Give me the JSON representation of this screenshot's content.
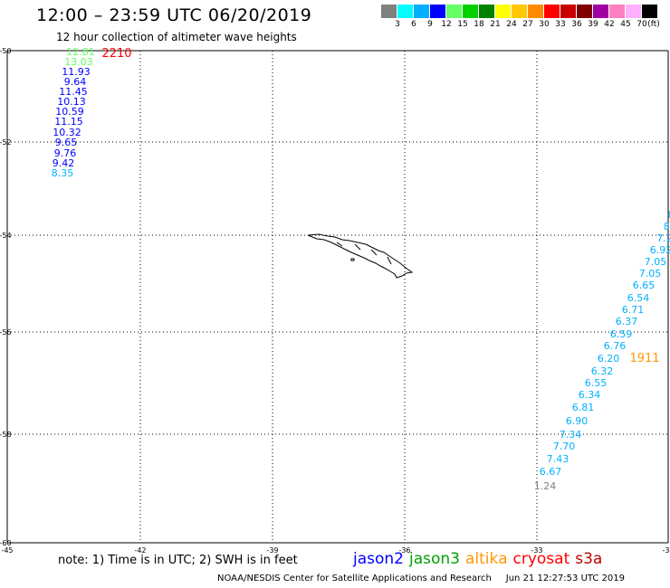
{
  "header": {
    "title": "12:00 – 23:59 UTC 06/20/2019",
    "subtitle": "12 hour collection of altimeter wave heights"
  },
  "legend": {
    "colors": [
      "#808080",
      "#00ffff",
      "#00b0ff",
      "#0000ff",
      "#66ff66",
      "#00d000",
      "#008000",
      "#ffff00",
      "#ffc800",
      "#ff8c00",
      "#ff0000",
      "#c80000",
      "#800000",
      "#a000a0",
      "#ff80c0",
      "#ffb0ff",
      "#000000"
    ],
    "labels": [
      "3",
      "6",
      "9",
      "12",
      "15",
      "18",
      "21",
      "24",
      "27",
      "30",
      "33",
      "36",
      "39",
      "42",
      "45",
      "70"
    ],
    "unit": "(ft)"
  },
  "axes": {
    "lon_labels": [
      "-45",
      "-42",
      "-39",
      "-36",
      "-33",
      "-30"
    ],
    "lat_labels": [
      "-50",
      "-52",
      "-54",
      "-56",
      "-58",
      "-60"
    ]
  },
  "tracks": [
    {
      "satellite": "jason3",
      "values": [
        {
          "v": "12.81",
          "color": "#66ff66"
        },
        {
          "v": "13.03",
          "color": "#66ff66"
        }
      ]
    },
    {
      "satellite": "cryosat",
      "time_label": "2210",
      "time_color": "#ff0000"
    },
    {
      "satellite": "jason2",
      "values": [
        {
          "v": "11.93",
          "color": "#0000ff"
        },
        {
          "v": "9.64",
          "color": "#0000ff"
        },
        {
          "v": "11.45",
          "color": "#0000ff"
        },
        {
          "v": "10.13",
          "color": "#0000ff"
        },
        {
          "v": "10.59",
          "color": "#0000ff"
        },
        {
          "v": "11.15",
          "color": "#0000ff"
        },
        {
          "v": "10.32",
          "color": "#0000ff"
        },
        {
          "v": "9.65",
          "color": "#0000ff"
        },
        {
          "v": "9.76",
          "color": "#0000ff"
        },
        {
          "v": "9.42",
          "color": "#0000ff"
        },
        {
          "v": "8.35",
          "color": "#00b0ff"
        }
      ]
    },
    {
      "satellite": "altika",
      "time_label": "1911",
      "time_color": "#ff9900",
      "values": [
        {
          "v": "8",
          "color": "#00b0ff"
        },
        {
          "v": "8.",
          "color": "#00b0ff"
        },
        {
          "v": "7.2",
          "color": "#00b0ff"
        },
        {
          "v": "6.92",
          "color": "#00b0ff"
        },
        {
          "v": "7.05",
          "color": "#00b0ff"
        },
        {
          "v": "7.05",
          "color": "#00b0ff"
        },
        {
          "v": "6.65",
          "color": "#00b0ff"
        },
        {
          "v": "6.54",
          "color": "#00b0ff"
        },
        {
          "v": "6.71",
          "color": "#00b0ff"
        },
        {
          "v": "6.37",
          "color": "#00b0ff"
        },
        {
          "v": "6.59",
          "color": "#00b0ff"
        },
        {
          "v": "6.76",
          "color": "#00b0ff"
        },
        {
          "v": "6.20",
          "color": "#00b0ff"
        },
        {
          "v": "6.32",
          "color": "#00b0ff"
        },
        {
          "v": "6.55",
          "color": "#00b0ff"
        },
        {
          "v": "6.34",
          "color": "#00b0ff"
        },
        {
          "v": "6.81",
          "color": "#00b0ff"
        },
        {
          "v": "6.90",
          "color": "#00b0ff"
        },
        {
          "v": "7.34",
          "color": "#00b0ff"
        },
        {
          "v": "7.70",
          "color": "#00b0ff"
        },
        {
          "v": "7.43",
          "color": "#00b0ff"
        },
        {
          "v": "6.67",
          "color": "#00b0ff"
        },
        {
          "v": "1.24",
          "color": "#808080"
        }
      ]
    }
  ],
  "note": "note: 1) Time is in UTC; 2) SWH is in feet",
  "satellites": [
    {
      "name": "jason2",
      "color": "#0000ff"
    },
    {
      "name": "jason3",
      "color": "#00a000"
    },
    {
      "name": "altika",
      "color": "#ff9900"
    },
    {
      "name": "cryosat",
      "color": "#ff0000"
    },
    {
      "name": "s3a",
      "color": "#c00000"
    }
  ],
  "footer": {
    "credit": "NOAA/NESDIS Center for Satellite Applications and Research",
    "timestamp": "Jun 21 12:27:53 UTC 2019"
  }
}
